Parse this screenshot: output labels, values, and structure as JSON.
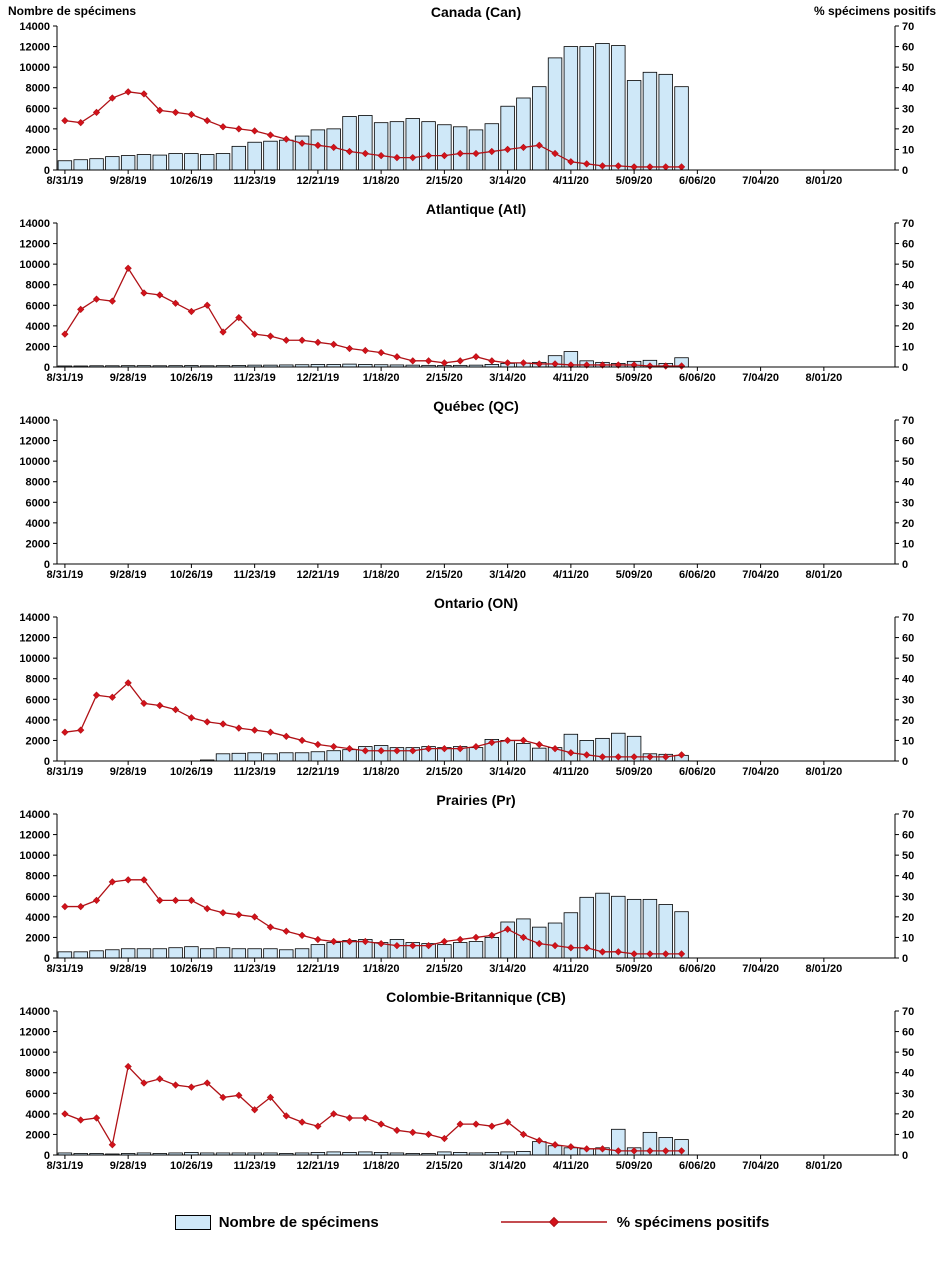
{
  "header": {
    "left_label": "Nombre de spécimens",
    "right_label": "% spécimens positifs"
  },
  "legend": {
    "bars_label": "Nombre de spécimens",
    "line_label": "% spécimens positifs"
  },
  "colors": {
    "bar_fill": "#cfe8f8",
    "bar_border": "#000000",
    "line": "#b01116",
    "marker": "#d3121b",
    "axis": "#000000"
  },
  "axes": {
    "y_left": {
      "min": 0,
      "max": 14000,
      "step": 2000
    },
    "y_right": {
      "min": 0,
      "max": 70,
      "step": 10
    },
    "x_slot_count": 53,
    "x_ticks": [
      "8/31/19",
      "9/28/19",
      "10/26/19",
      "11/23/19",
      "12/21/19",
      "1/18/20",
      "2/15/20",
      "3/14/20",
      "4/11/20",
      "5/09/20",
      "6/06/20",
      "7/04/20",
      "8/01/20"
    ]
  },
  "chart_data": [
    {
      "type": "bar",
      "id": "can",
      "title": "Canada (Can)",
      "weeks": [
        "8/31/19",
        "9/07/19",
        "9/14/19",
        "9/21/19",
        "9/28/19",
        "10/05/19",
        "10/12/19",
        "10/19/19",
        "10/26/19",
        "11/02/19",
        "11/09/19",
        "11/16/19",
        "11/23/19",
        "11/30/19",
        "12/07/19",
        "12/14/19",
        "12/21/19",
        "12/28/19",
        "1/04/20",
        "1/11/20",
        "1/18/20",
        "1/25/20",
        "2/01/20",
        "2/08/20",
        "2/15/20",
        "2/22/20",
        "2/29/20",
        "3/07/20",
        "3/14/20",
        "3/21/20",
        "3/28/20",
        "4/04/20",
        "4/11/20",
        "4/18/20",
        "4/25/20",
        "5/02/20",
        "5/09/20",
        "5/16/20",
        "5/23/20",
        "5/30/20"
      ],
      "specimens": [
        900,
        1000,
        1100,
        1300,
        1400,
        1500,
        1450,
        1600,
        1600,
        1500,
        1600,
        2300,
        2700,
        2800,
        2900,
        3300,
        3900,
        4000,
        5200,
        5300,
        4600,
        4700,
        5000,
        4700,
        4400,
        4200,
        3900,
        4500,
        6200,
        7000,
        8100,
        10900,
        12000,
        12000,
        12300,
        12100,
        8700,
        9500,
        9300,
        8100
      ],
      "pct_positive": [
        24,
        23,
        28,
        35,
        38,
        37,
        29,
        28,
        27,
        24,
        21,
        20,
        19,
        17,
        15,
        13,
        12,
        11,
        9,
        8,
        7,
        6,
        6,
        7,
        7,
        8,
        8,
        9,
        10,
        11,
        12,
        8,
        4,
        3,
        2,
        2,
        1.5,
        1.5,
        1.5,
        1.5
      ]
    },
    {
      "type": "bar",
      "id": "atl",
      "title": "Atlantique (Atl)",
      "specimens": [
        100,
        100,
        120,
        120,
        130,
        130,
        120,
        130,
        140,
        120,
        130,
        150,
        180,
        180,
        200,
        220,
        250,
        250,
        280,
        250,
        220,
        200,
        180,
        160,
        150,
        160,
        180,
        250,
        350,
        400,
        450,
        1100,
        1500,
        600,
        450,
        350,
        550,
        650,
        350,
        900
      ],
      "pct_positive": [
        16,
        28,
        33,
        32,
        48,
        36,
        35,
        31,
        27,
        30,
        17,
        24,
        16,
        15,
        13,
        13,
        12,
        11,
        9,
        8,
        7,
        5,
        3,
        3,
        2,
        3,
        5,
        3,
        2,
        2,
        1.5,
        1.5,
        1,
        1,
        1,
        1,
        1,
        0.5,
        0.5,
        0.5
      ]
    },
    {
      "type": "bar",
      "id": "qc",
      "title": "Québec (QC)",
      "specimens": [],
      "pct_positive": []
    },
    {
      "type": "bar",
      "id": "on",
      "title": "Ontario (ON)",
      "specimens": [
        0,
        0,
        0,
        0,
        0,
        0,
        0,
        0,
        0,
        100,
        700,
        750,
        800,
        700,
        800,
        800,
        900,
        1000,
        1100,
        1400,
        1500,
        1300,
        1300,
        1400,
        1300,
        1400,
        1300,
        2100,
        2000,
        1700,
        1250,
        1300,
        2600,
        2000,
        2200,
        2700,
        2400,
        700,
        650,
        550
      ],
      "pct_positive": [
        14,
        15,
        32,
        31,
        38,
        28,
        27,
        25,
        21,
        19,
        18,
        16,
        15,
        14,
        12,
        10,
        8,
        7,
        6,
        5,
        5,
        5,
        5,
        6,
        6,
        6,
        7,
        9,
        10,
        10,
        8,
        6,
        4,
        3,
        2,
        2,
        2,
        2,
        2,
        3
      ]
    },
    {
      "type": "bar",
      "id": "pr",
      "title": "Prairies (Pr)",
      "specimens": [
        600,
        600,
        700,
        800,
        900,
        900,
        900,
        1000,
        1100,
        900,
        1000,
        900,
        900,
        900,
        800,
        900,
        1300,
        1500,
        1700,
        1800,
        1500,
        1800,
        1500,
        1400,
        1300,
        1500,
        1600,
        2000,
        3500,
        3800,
        3000,
        3400,
        4400,
        5900,
        6300,
        6000,
        5700,
        5700,
        5200,
        4500
      ],
      "pct_positive": [
        25,
        25,
        28,
        37,
        38,
        38,
        28,
        28,
        28,
        24,
        22,
        21,
        20,
        15,
        13,
        11,
        9,
        8,
        8,
        8,
        7,
        6,
        6,
        6,
        8,
        9,
        10,
        11,
        14,
        10,
        7,
        6,
        5,
        5,
        3,
        3,
        2,
        2,
        2,
        2
      ]
    },
    {
      "type": "bar",
      "id": "cb",
      "title": "Colombie-Britannique (CB)",
      "specimens": [
        200,
        150,
        150,
        100,
        150,
        200,
        150,
        200,
        250,
        200,
        200,
        200,
        200,
        200,
        150,
        200,
        250,
        300,
        250,
        300,
        250,
        200,
        150,
        150,
        300,
        250,
        200,
        250,
        300,
        350,
        1300,
        900,
        700,
        600,
        700,
        2500,
        700,
        2200,
        1700,
        1500
      ],
      "pct_positive": [
        20,
        17,
        18,
        5,
        43,
        35,
        37,
        34,
        33,
        35,
        28,
        29,
        22,
        28,
        19,
        16,
        14,
        20,
        18,
        18,
        15,
        12,
        11,
        10,
        8,
        15,
        15,
        14,
        16,
        10,
        7,
        5,
        4,
        3,
        3,
        2,
        2,
        2,
        2,
        2
      ]
    }
  ]
}
